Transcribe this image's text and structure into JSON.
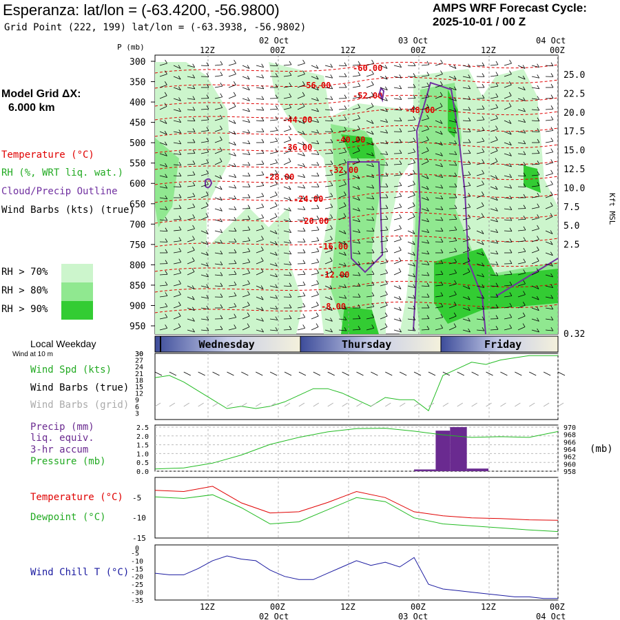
{
  "header": {
    "title": "Esperanza:  lat/lon = (-63.4200, -56.9800)",
    "subtitle": "Grid Point (222, 199) lat/lon = (-63.3938, -56.9802)",
    "cycle_line1": "AMPS WRF Forecast Cycle:",
    "cycle_line2": "2025-10-01 / 00  Z"
  },
  "left_panel": {
    "grid_label": "Model Grid ΔX:",
    "grid_value": "6.000 km",
    "legend_temperature": "Temperature (°C)",
    "legend_rh": "RH (%, WRT liq. wat.)",
    "legend_cloud": "Cloud/Precip Outline",
    "legend_wind": "Wind Barbs (kts) (true)",
    "rh_70": "RH > 70%",
    "rh_80": "RH > 80%",
    "rh_90": "RH > 90%"
  },
  "colors": {
    "temperature": "#e00000",
    "rh70": "#ccf5cc",
    "rh80": "#90e890",
    "rh90": "#33cc33",
    "cloud": "#7030a0",
    "wind_speed": "#22bb22",
    "precip": "#6a2a90",
    "pressure": "#22bb22",
    "dewpoint": "#22bb22",
    "wind_chill": "#1a1aa0",
    "grid_barbs": "#aaaaaa"
  },
  "time_axis": {
    "top_ticks": [
      "12Z",
      "00Z",
      "12Z",
      "00Z",
      "12Z",
      "00Z"
    ],
    "top_dates": [
      "02 Oct",
      "03 Oct",
      "04 Oct"
    ],
    "bottom_ticks": [
      "12Z",
      "00Z",
      "12Z",
      "00Z",
      "12Z",
      "00Z"
    ],
    "bottom_dates": [
      "02 Oct",
      "03 Oct",
      "04 Oct"
    ],
    "p_label": "P (mb)",
    "kft_label": "Kft MSL",
    "weekday_label": "Local Weekday",
    "wind_at": "Wind at 10 m",
    "weekdays": [
      "Wednesday",
      "Thursday",
      "Friday"
    ]
  },
  "chart_data": [
    {
      "type": "heatmap",
      "name": "cross-section",
      "pressure_ticks": [
        300,
        350,
        400,
        450,
        500,
        550,
        600,
        650,
        700,
        750,
        800,
        850,
        900,
        950
      ],
      "height_ticks": [
        "25.0",
        "22.5",
        "20.0",
        "17.5",
        "15.0",
        "12.5",
        "10.0",
        "7.5",
        "5.0",
        "2.5",
        "0.32"
      ],
      "isotherm_labels": [
        "-60.00",
        "-56.00",
        "-52.00",
        "-48.00",
        "-44.00",
        "-40.00",
        "-36.00",
        "-32.00",
        "-28.00",
        "-24.00",
        "-20.00",
        "-16.00",
        "-12.00",
        "-8.00"
      ],
      "x_range_hours": [
        0,
        84
      ]
    },
    {
      "type": "line",
      "name": "wind-speed",
      "label_speed": "Wind Spd (kts)",
      "label_barbs_true": "Wind Barbs (true)",
      "label_barbs_grid": "Wind Barbs (grid)",
      "yticks": [
        3,
        6,
        9,
        12,
        15,
        18,
        21,
        24,
        27,
        30
      ],
      "ylim": [
        0,
        30
      ],
      "x_hours": [
        0,
        3,
        6,
        9,
        12,
        15,
        18,
        21,
        24,
        27,
        30,
        33,
        36,
        39,
        42,
        45,
        48,
        51,
        54,
        57,
        60,
        63,
        66,
        69,
        72,
        75,
        78,
        81,
        84
      ],
      "values": [
        19,
        20,
        17,
        13,
        9,
        5,
        6,
        5,
        6,
        8,
        11,
        14,
        14,
        12,
        9,
        6,
        10,
        9,
        9,
        4,
        20,
        23,
        26,
        25,
        27,
        28,
        29,
        29,
        29
      ]
    },
    {
      "type": "bar",
      "name": "precip-pressure",
      "label_precip": "Precip (mm)",
      "label_liq": "liq. equiv.",
      "label_accum": "3-hr accum",
      "label_pressure": "Pressure (mb)",
      "unit_right": "(mb)",
      "precip_yticks": [
        "0.0",
        "0.5",
        "1.0",
        "1.5",
        "2.0",
        "2.5"
      ],
      "precip_ylim": [
        0,
        2.5
      ],
      "pressure_yticks": [
        958,
        960,
        962,
        964,
        966,
        968,
        970
      ],
      "pressure_ylim": [
        958,
        970
      ],
      "precip_bars": [
        {
          "start_hour": 0,
          "end_hour": 54,
          "value": 0.0
        },
        {
          "start_hour": 54,
          "end_hour": 58.5,
          "value": 0.1
        },
        {
          "start_hour": 58.5,
          "end_hour": 61.5,
          "value": 2.3
        },
        {
          "start_hour": 61.5,
          "end_hour": 65,
          "value": 2.5
        },
        {
          "start_hour": 65,
          "end_hour": 69.5,
          "value": 0.15
        },
        {
          "start_hour": 69.5,
          "end_hour": 84,
          "value": 0.0
        }
      ],
      "pressure_x": [
        0,
        6,
        12,
        18,
        24,
        30,
        36,
        42,
        48,
        54,
        60,
        66,
        72,
        78,
        84
      ],
      "pressure_values": [
        958.6,
        958.9,
        960.2,
        962.4,
        965.3,
        967.2,
        968.7,
        969.6,
        969.7,
        968.9,
        967.9,
        967.2,
        967.4,
        967.2,
        968.8
      ]
    },
    {
      "type": "line",
      "name": "temperature-dewpoint",
      "label_temperature": "Temperature (°C)",
      "label_dewpoint": "Dewpoint (°C)",
      "yticks": [
        -5,
        -10,
        -15
      ],
      "ylim": [
        -15,
        0
      ],
      "x": [
        0,
        6,
        12,
        18,
        24,
        30,
        36,
        42,
        48,
        54,
        60,
        66,
        72,
        78,
        84
      ],
      "temperature": [
        -3.2,
        -3.5,
        -2.2,
        -6.3,
        -8.8,
        -8.5,
        -6.2,
        -3.5,
        -5.0,
        -8.5,
        -9.5,
        -10.0,
        -10.2,
        -10.5,
        -10.6
      ],
      "dewpoint": [
        -4.8,
        -5.2,
        -4.3,
        -7.5,
        -11.5,
        -11.0,
        -8.0,
        -5.0,
        -6.0,
        -10.0,
        -11.5,
        -12.0,
        -12.5,
        -13.0,
        -13.4
      ]
    },
    {
      "type": "line",
      "name": "wind-chill",
      "label": "Wind Chill T (°C)",
      "yticks": [
        -5,
        -10,
        -15,
        -20,
        -25,
        -30,
        -35
      ],
      "ylim": [
        -35,
        0
      ],
      "x": [
        0,
        3,
        6,
        9,
        12,
        15,
        18,
        21,
        24,
        27,
        30,
        33,
        36,
        39,
        42,
        45,
        48,
        51,
        54,
        57,
        60,
        63,
        66,
        69,
        72,
        75,
        78,
        81,
        84
      ],
      "values": [
        -18,
        -19,
        -19,
        -15,
        -10,
        -7,
        -9,
        -10,
        -16,
        -20,
        -22,
        -22,
        -18,
        -14,
        -10,
        -13,
        -11,
        -14,
        -8,
        -25,
        -28,
        -29,
        -30,
        -31,
        -32,
        -33,
        -33,
        -34,
        -34
      ]
    }
  ]
}
